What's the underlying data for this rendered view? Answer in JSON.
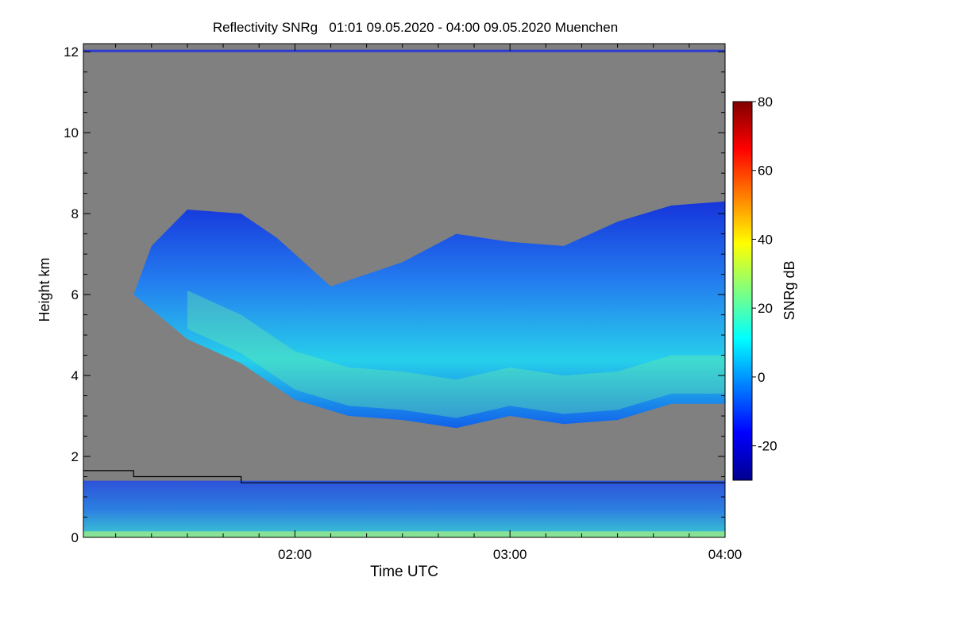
{
  "chart_data": {
    "type": "heatmap",
    "title": "Reflectivity SNRg   01:01 09.05.2020 - 04:00 09.05.2020 Muenchen",
    "xlabel": "Time UTC",
    "ylabel": "Height km",
    "xlim": [
      "01:01",
      "04:00"
    ],
    "ylim": [
      0,
      12.2
    ],
    "x_ticks": [
      {
        "label": "02:00",
        "value": "02:00"
      },
      {
        "label": "03:00",
        "value": "03:00"
      },
      {
        "label": "04:00",
        "value": "04:00"
      }
    ],
    "y_ticks": [
      0,
      2,
      4,
      6,
      8,
      10,
      12
    ],
    "colorbar": {
      "label": "SNRg dB",
      "range": [
        -30,
        80
      ],
      "ticks": [
        -20,
        0,
        20,
        40,
        60,
        80
      ],
      "colormap": "jet"
    },
    "background_color": "#808080",
    "cloud_layer": {
      "description_visible": false,
      "top_profile": [
        [
          "01:15",
          6.0
        ],
        [
          "01:20",
          7.2
        ],
        [
          "01:30",
          8.1
        ],
        [
          "01:45",
          8.0
        ],
        [
          "01:55",
          7.4
        ],
        [
          "02:10",
          6.2
        ],
        [
          "02:30",
          6.8
        ],
        [
          "02:45",
          7.5
        ],
        [
          "03:00",
          7.3
        ],
        [
          "03:15",
          7.2
        ],
        [
          "03:30",
          7.8
        ],
        [
          "03:45",
          8.2
        ],
        [
          "04:00",
          8.3
        ]
      ],
      "base_profile": [
        [
          "01:30",
          4.9
        ],
        [
          "01:45",
          4.3
        ],
        [
          "02:00",
          3.4
        ],
        [
          "02:15",
          3.0
        ],
        [
          "02:30",
          2.9
        ],
        [
          "02:45",
          2.7
        ],
        [
          "03:00",
          3.0
        ],
        [
          "03:15",
          2.8
        ],
        [
          "03:30",
          2.9
        ],
        [
          "03:45",
          3.3
        ],
        [
          "04:00",
          3.3
        ]
      ]
    },
    "boundary_line": [
      [
        "01:01",
        1.65
      ],
      [
        "01:15",
        1.65
      ],
      [
        "01:15",
        1.5
      ],
      [
        "01:45",
        1.5
      ],
      [
        "01:45",
        1.35
      ],
      [
        "04:00",
        1.35
      ]
    ]
  }
}
